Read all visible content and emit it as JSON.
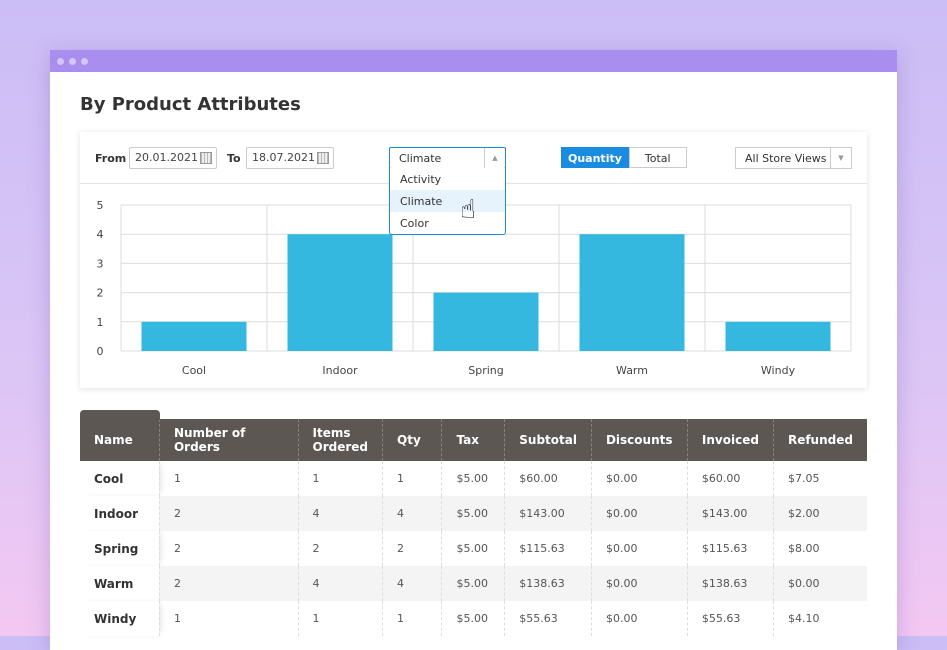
{
  "page": {
    "title": "By Product Attributes"
  },
  "filters": {
    "from_label": "From",
    "from_value": "20.01.2021",
    "to_label": "To",
    "to_value": "18.07.2021",
    "attribute_selected": "Climate",
    "attribute_options": [
      "Activity",
      "Climate",
      "Color"
    ],
    "mode_options": [
      "Quantity",
      "Total"
    ],
    "mode_selected": "Quantity",
    "store_view": "All Store Views"
  },
  "chart_data": {
    "type": "bar",
    "categories": [
      "Cool",
      "Indoor",
      "Spring",
      "Warm",
      "Windy"
    ],
    "values": [
      1,
      4,
      2,
      4,
      1
    ],
    "ylim": [
      0,
      5
    ],
    "yticks": [
      "0",
      "1",
      "2",
      "3",
      "4",
      "5"
    ],
    "grid": true,
    "bar_color": "#35b8df"
  },
  "table": {
    "headers": [
      "Name",
      "Number of Orders",
      "Items Ordered",
      "Qty",
      "Tax",
      "Subtotal",
      "Discounts",
      "Invoiced",
      "Refunded"
    ],
    "rows": [
      [
        "Cool",
        "1",
        "1",
        "1",
        "$5.00",
        "$60.00",
        "$0.00",
        "$60.00",
        "$7.05"
      ],
      [
        "Indoor",
        "2",
        "4",
        "4",
        "$5.00",
        "$143.00",
        "$0.00",
        "$143.00",
        "$2.00"
      ],
      [
        "Spring",
        "2",
        "2",
        "2",
        "$5.00",
        "$115.63",
        "$0.00",
        "$115.63",
        "$8.00"
      ],
      [
        "Warm",
        "2",
        "4",
        "4",
        "$5.00",
        "$138.63",
        "$0.00",
        "$138.63",
        "$0.00"
      ],
      [
        "Windy",
        "1",
        "1",
        "1",
        "$5.00",
        "$55.63",
        "$0.00",
        "$55.63",
        "$4.10"
      ]
    ]
  }
}
